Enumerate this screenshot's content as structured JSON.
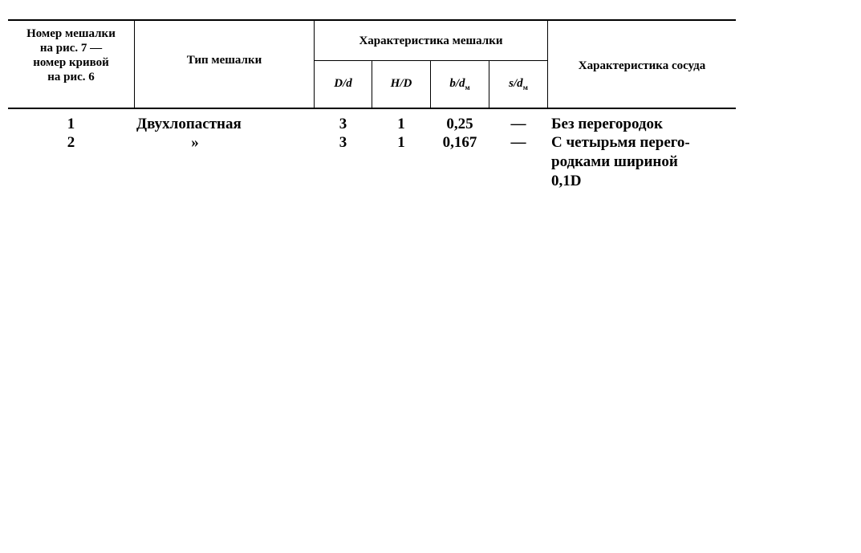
{
  "table": {
    "headers": {
      "col1": [
        "Номер мешалки",
        "на рис.    7 —",
        "номер кривой",
        "на рис.    6"
      ],
      "col2": "Тип мешалки",
      "group": "Характеристика мешалки",
      "sub": [
        {
          "main": "D/d",
          "sub": ""
        },
        {
          "main": "H/D",
          "sub": ""
        },
        {
          "main": "b/d",
          "sub": "м"
        },
        {
          "main": "s/d",
          "sub": "м"
        }
      ],
      "col_vessel": "Характеристика сосуда"
    },
    "rows": [
      {
        "num": "1",
        "type": "Двухлопастная",
        "D_d": "3",
        "H_D": "1",
        "b_dm": "0,25",
        "s_dm": "—",
        "vessel": [
          "Без перегородок"
        ]
      },
      {
        "num": "2",
        "type": "»",
        "D_d": "3",
        "H_D": "1",
        "b_dm": "0,167",
        "s_dm": "—",
        "vessel": [
          "С четырьмя перего-",
          "родками шириной",
          "0,1D"
        ]
      }
    ]
  }
}
